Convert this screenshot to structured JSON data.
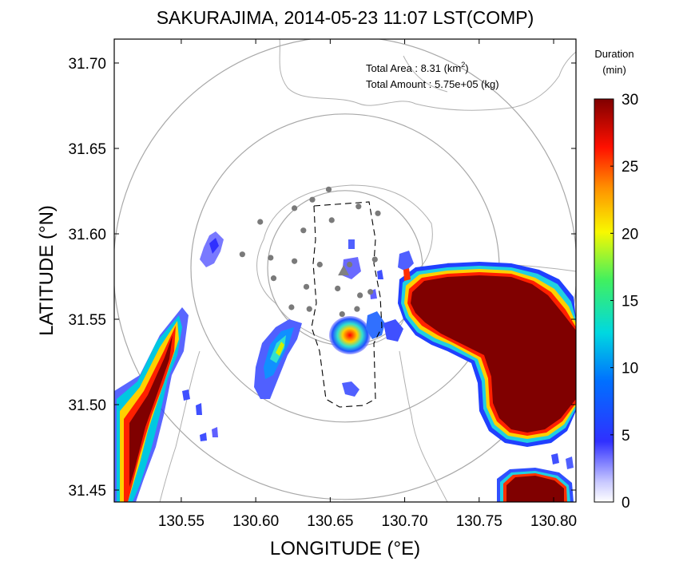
{
  "chart_data": {
    "type": "heatmap",
    "title": "SAKURAJIMA, 2014-05-23 11:07 LST(COMP)",
    "xlabel": "LONGITUDE (°E)",
    "ylabel": "LATITUDE (°N)",
    "xlim": [
      130.505,
      130.815
    ],
    "ylim": [
      31.443,
      31.714
    ],
    "x_ticks": [
      "130.55",
      "130.60",
      "130.65",
      "130.70",
      "130.75",
      "130.80"
    ],
    "y_ticks": [
      "31.45",
      "31.50",
      "31.55",
      "31.60",
      "31.65",
      "31.70"
    ],
    "annotations": {
      "area_label": "Total Area   : 8.31 (km",
      "area_sup": "2",
      "area_close": ")",
      "amount": "Total Amount : 5.75e+05 (kg)"
    },
    "colorbar": {
      "title_line1": "Duration",
      "title_line2": "(min)",
      "ticks": [
        "0",
        "5",
        "10",
        "15",
        "20",
        "25",
        "30"
      ],
      "range": [
        0,
        30
      ]
    },
    "vent": {
      "lon": 130.659,
      "lat": 31.578
    },
    "range_rings_center": {
      "lon": 130.66,
      "lat": 31.58
    },
    "stations": [
      {
        "lon": 130.638,
        "lat": 31.62
      },
      {
        "lon": 130.649,
        "lat": 31.626
      },
      {
        "lon": 130.626,
        "lat": 31.615
      },
      {
        "lon": 130.603,
        "lat": 31.607
      },
      {
        "lon": 130.632,
        "lat": 31.602
      },
      {
        "lon": 130.651,
        "lat": 31.608
      },
      {
        "lon": 130.669,
        "lat": 31.616
      },
      {
        "lon": 130.682,
        "lat": 31.612
      },
      {
        "lon": 130.591,
        "lat": 31.588
      },
      {
        "lon": 130.61,
        "lat": 31.586
      },
      {
        "lon": 130.626,
        "lat": 31.584
      },
      {
        "lon": 130.643,
        "lat": 31.582
      },
      {
        "lon": 130.663,
        "lat": 31.582
      },
      {
        "lon": 130.68,
        "lat": 31.585
      },
      {
        "lon": 130.612,
        "lat": 31.574
      },
      {
        "lon": 130.634,
        "lat": 31.569
      },
      {
        "lon": 130.655,
        "lat": 31.568
      },
      {
        "lon": 130.67,
        "lat": 31.564
      },
      {
        "lon": 130.677,
        "lat": 31.566
      },
      {
        "lon": 130.624,
        "lat": 31.557
      },
      {
        "lon": 130.636,
        "lat": 31.556
      },
      {
        "lon": 130.658,
        "lat": 31.553
      },
      {
        "lon": 130.668,
        "lat": 31.556
      }
    ],
    "ash_regions": [
      {
        "name": "west-coast-band",
        "peak_min": 30
      },
      {
        "name": "southwest-plume",
        "peak_min": 12
      },
      {
        "name": "central-plume",
        "peak_min": 18
      },
      {
        "name": "east-plume",
        "peak_min": 30
      },
      {
        "name": "southeast-patch",
        "peak_min": 30
      }
    ]
  }
}
